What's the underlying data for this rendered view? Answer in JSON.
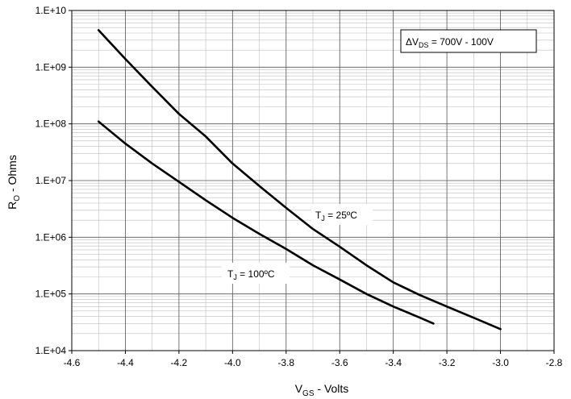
{
  "chart_data": {
    "type": "line",
    "xlabel": {
      "main": "V",
      "sub": "GS",
      "rest": " - Volts"
    },
    "ylabel": {
      "main": "R",
      "sub": "O",
      "rest": " - Ohms"
    },
    "xlim": [
      -4.6,
      -2.8
    ],
    "ylim": [
      10000,
      10000000000
    ],
    "yscale": "log",
    "grid": true,
    "x_ticks": [
      -4.6,
      -4.4,
      -4.2,
      -4.0,
      -3.8,
      -3.6,
      -3.4,
      -3.2,
      -3.0,
      -2.8
    ],
    "x_tick_labels": [
      "-4.6",
      "-4.4",
      "-4.2",
      "-4.0",
      "-3.8",
      "-3.6",
      "-3.4",
      "-3.2",
      "-3.0",
      "-2.8"
    ],
    "y_ticks": [
      10000,
      100000,
      1000000,
      10000000,
      100000000,
      1000000000,
      10000000000
    ],
    "y_tick_labels": [
      "1.E+04",
      "1.E+05",
      "1.E+06",
      "1.E+07",
      "1.E+08",
      "1.E+09",
      "1.E+10"
    ],
    "legend_box": {
      "prefix": "ΔV",
      "sub": "DS",
      "rest": " = 700V - 100V"
    },
    "series": [
      {
        "name": "TJ = 25ºC",
        "label": {
          "main": "T",
          "sub": "J",
          "rest": " = 25ºC"
        },
        "x": [
          -4.5,
          -4.4,
          -4.3,
          -4.2,
          -4.1,
          -4.0,
          -3.9,
          -3.8,
          -3.7,
          -3.6,
          -3.5,
          -3.4,
          -3.3,
          -3.2,
          -3.1,
          -3.0
        ],
        "y": [
          4500000000,
          1400000000,
          450000000,
          150000000,
          60000000,
          20000000,
          8000000,
          3300000,
          1400000,
          680000,
          320000,
          160000,
          95000,
          60000,
          38000,
          24000
        ]
      },
      {
        "name": "TJ = 100ºC",
        "label": {
          "main": "T",
          "sub": "J",
          "rest": " = 100ºC"
        },
        "x": [
          -4.5,
          -4.4,
          -4.3,
          -4.2,
          -4.1,
          -4.0,
          -3.9,
          -3.8,
          -3.7,
          -3.6,
          -3.5,
          -3.4,
          -3.3,
          -3.25
        ],
        "y": [
          110000000,
          45000000,
          20000000,
          9500000,
          4500000,
          2200000,
          1150000,
          620000,
          320000,
          180000,
          100000,
          60000,
          38000,
          30000
        ]
      }
    ]
  }
}
